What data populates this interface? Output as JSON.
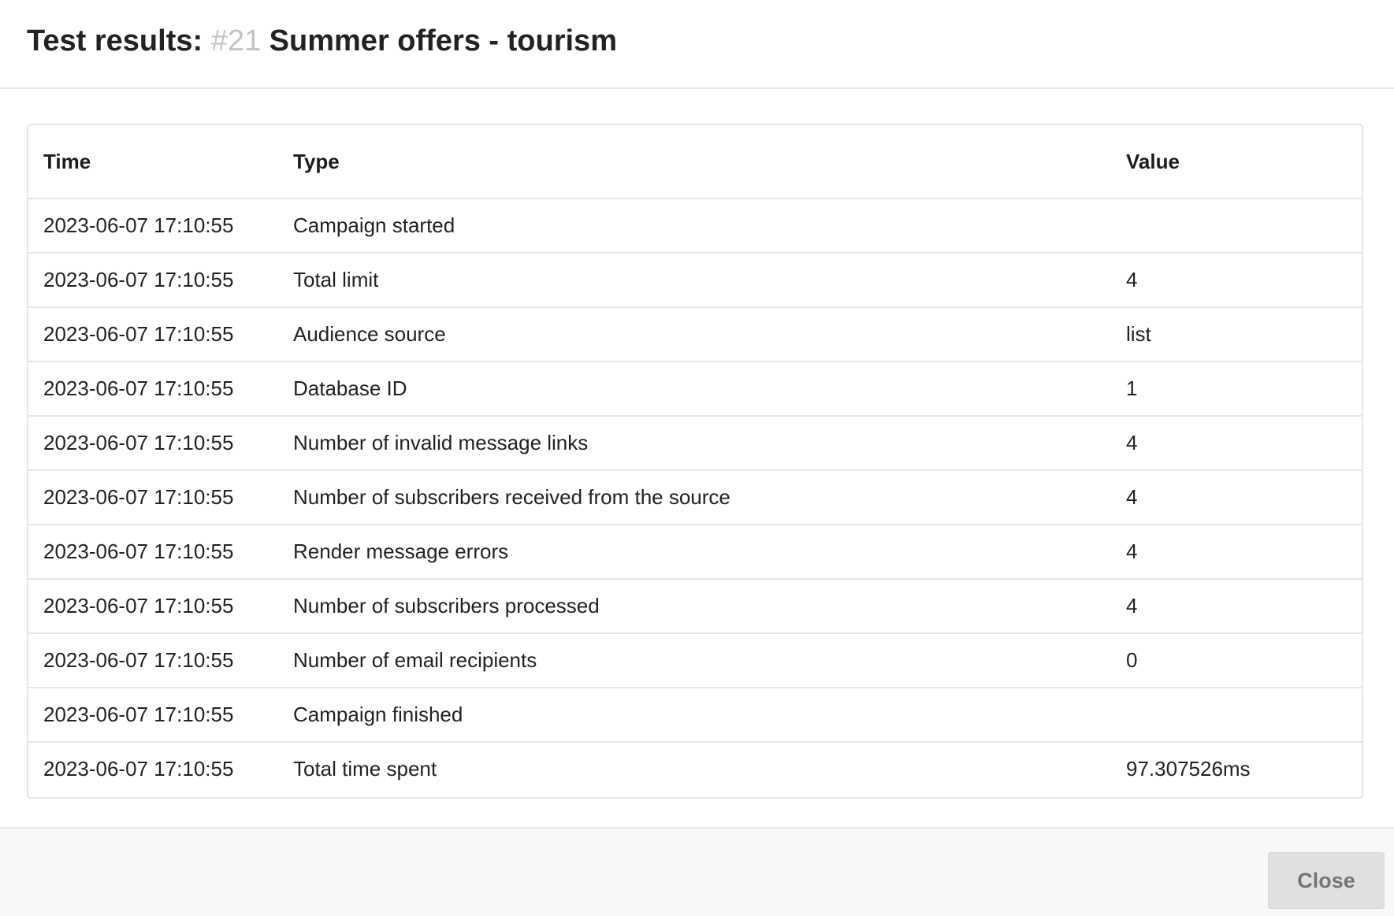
{
  "header": {
    "title_prefix": "Test results:",
    "campaign_number": "#21",
    "campaign_name": "Summer offers - tourism"
  },
  "table": {
    "columns": [
      "Time",
      "Type",
      "Value"
    ],
    "rows": [
      {
        "time": "2023-06-07 17:10:55",
        "type": "Campaign started",
        "value": ""
      },
      {
        "time": "2023-06-07 17:10:55",
        "type": "Total limit",
        "value": "4"
      },
      {
        "time": "2023-06-07 17:10:55",
        "type": "Audience source",
        "value": "list"
      },
      {
        "time": "2023-06-07 17:10:55",
        "type": "Database ID",
        "value": "1"
      },
      {
        "time": "2023-06-07 17:10:55",
        "type": "Number of invalid message links",
        "value": "4"
      },
      {
        "time": "2023-06-07 17:10:55",
        "type": "Number of subscribers received from the source",
        "value": "4"
      },
      {
        "time": "2023-06-07 17:10:55",
        "type": "Render message errors",
        "value": "4"
      },
      {
        "time": "2023-06-07 17:10:55",
        "type": "Number of subscribers processed",
        "value": "4"
      },
      {
        "time": "2023-06-07 17:10:55",
        "type": "Number of email recipients",
        "value": "0"
      },
      {
        "time": "2023-06-07 17:10:55",
        "type": "Campaign finished",
        "value": ""
      },
      {
        "time": "2023-06-07 17:10:55",
        "type": "Total time spent",
        "value": "97.307526ms"
      }
    ]
  },
  "footer": {
    "close_label": "Close"
  },
  "colors": {
    "muted_number": "#c4c4c4",
    "border": "#e3e6ea",
    "footer_bg": "#f7f8fa",
    "button_bg": "#e0e0e0"
  }
}
